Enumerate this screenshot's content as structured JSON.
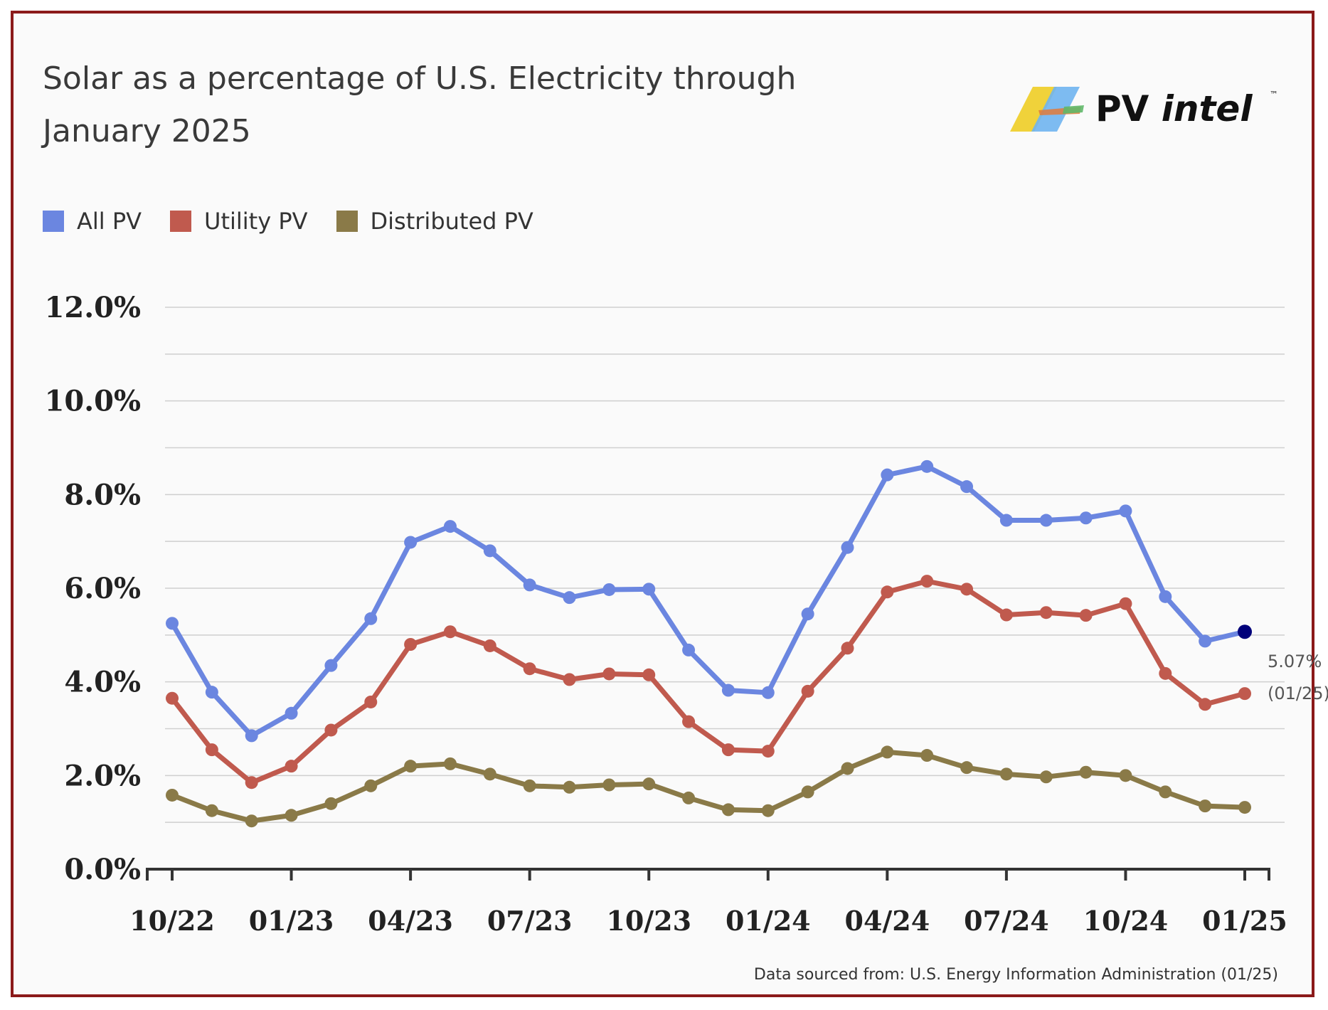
{
  "chart_data": {
    "type": "line",
    "title": "Solar as a percentage of U.S. Electricity through January 2025",
    "x": [
      "10/22",
      "11/22",
      "12/22",
      "01/23",
      "02/23",
      "03/23",
      "04/23",
      "05/23",
      "06/23",
      "07/23",
      "08/23",
      "09/23",
      "10/23",
      "11/23",
      "12/23",
      "01/24",
      "02/24",
      "03/24",
      "04/24",
      "05/24",
      "06/24",
      "07/24",
      "08/24",
      "09/24",
      "10/24",
      "11/24",
      "12/24",
      "01/25"
    ],
    "x_tick_labels": [
      "10/22",
      "01/23",
      "04/23",
      "07/23",
      "10/23",
      "01/24",
      "04/24",
      "07/24",
      "10/24",
      "01/25"
    ],
    "y_tick_labels": [
      "0.0%",
      "2.0%",
      "4.0%",
      "6.0%",
      "8.0%",
      "10.0%",
      "12.0%"
    ],
    "ylim": [
      0,
      12
    ],
    "grid": true,
    "legend_position": "top-left",
    "series": [
      {
        "name": "All PV",
        "color": "#6b86e0",
        "values": [
          5.25,
          3.78,
          2.85,
          3.33,
          4.35,
          5.35,
          6.98,
          7.32,
          6.8,
          6.07,
          5.8,
          5.97,
          5.98,
          4.68,
          3.82,
          3.77,
          5.45,
          6.87,
          8.42,
          8.6,
          8.17,
          7.45,
          7.45,
          7.5,
          7.65,
          5.82,
          4.87,
          5.07
        ]
      },
      {
        "name": "Utility PV",
        "color": "#c05a4e",
        "values": [
          3.65,
          2.55,
          1.85,
          2.2,
          2.97,
          3.57,
          4.8,
          5.07,
          4.77,
          4.28,
          4.05,
          4.17,
          4.15,
          3.15,
          2.55,
          2.52,
          3.8,
          4.72,
          5.92,
          6.15,
          5.98,
          5.43,
          5.48,
          5.42,
          5.67,
          4.18,
          3.52,
          3.75
        ]
      },
      {
        "name": "Distributed PV",
        "color": "#8a7a48",
        "values": [
          1.58,
          1.25,
          1.03,
          1.15,
          1.4,
          1.78,
          2.2,
          2.25,
          2.03,
          1.78,
          1.75,
          1.8,
          1.82,
          1.52,
          1.27,
          1.25,
          1.65,
          2.15,
          2.5,
          2.43,
          2.17,
          2.03,
          1.97,
          2.07,
          2.0,
          1.65,
          1.35,
          1.32
        ]
      }
    ],
    "annotation": {
      "value": "5.07%",
      "date": "(01/25)",
      "highlight_color": "#00007a"
    }
  },
  "footnote": "Data sourced from: U.S. Energy Information Administration (01/25)",
  "logo": {
    "text_pv": "PV",
    "text_intel": "intel",
    "tm": "™"
  }
}
